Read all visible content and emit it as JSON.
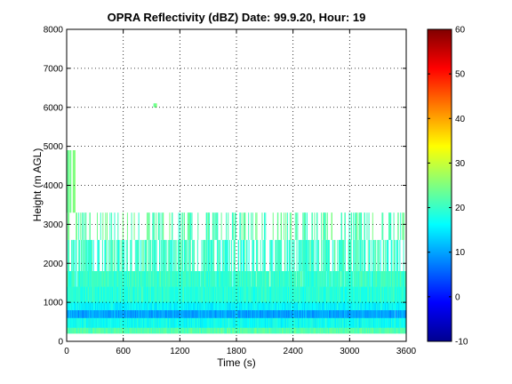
{
  "figure": {
    "title": "OPRA Reflectivity (dBZ)  Date: 99.9.20, Hour: 19"
  },
  "chart_data": {
    "type": "heatmap",
    "title": "OPRA Reflectivity (dBZ)  Date: 99.9.20, Hour: 19",
    "xlabel": "Time (s)",
    "ylabel": "Height (m AGL)",
    "xlim": [
      0,
      3600
    ],
    "ylim": [
      0,
      8000
    ],
    "xticks": [
      "0",
      "600",
      "1200",
      "1800",
      "2400",
      "3000",
      "3600"
    ],
    "yticks": [
      "0",
      "1000",
      "2000",
      "3000",
      "4000",
      "5000",
      "6000",
      "7000",
      "8000"
    ],
    "grid": true,
    "colormap": "jet",
    "colorbar": {
      "range": [
        -10,
        60
      ],
      "ticks": [
        "-10",
        "0",
        "10",
        "20",
        "30",
        "40",
        "50",
        "60"
      ]
    },
    "bands": [
      {
        "height_range": [
          200,
          350
        ],
        "dbz": 22
      },
      {
        "height_range": [
          350,
          600
        ],
        "dbz": 17
      },
      {
        "height_range": [
          600,
          800
        ],
        "dbz": 10
      },
      {
        "height_range": [
          800,
          1000
        ],
        "dbz": 16
      },
      {
        "height_range": [
          1000,
          1400
        ],
        "dbz": 19
      },
      {
        "height_range": [
          1400,
          1800
        ],
        "dbz": 20
      },
      {
        "height_range": [
          1800,
          2600
        ],
        "dbz": 20
      },
      {
        "height_range": [
          2600,
          3300
        ],
        "dbz": 22
      },
      {
        "height_range": [
          3300,
          4900
        ],
        "dbz": 24
      },
      {
        "height_range": [
          6000,
          6100
        ],
        "dbz": 24
      }
    ]
  }
}
